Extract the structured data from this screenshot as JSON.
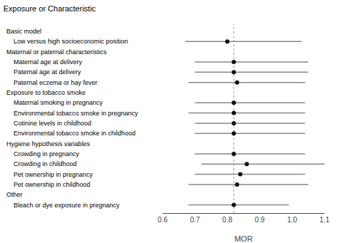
{
  "chart_data": {
    "type": "forest",
    "title": "Exposure or Characteristic",
    "x_label": "MOR",
    "categories": [
      "Basic model",
      "Low versus high socioeconomic position",
      "Maternal or paternal characteristics",
      "Maternal age at delivery",
      "Paternal age at delivery",
      "Paternal eczema or hay fever",
      "Exposure to tobacco smoke",
      "Maternal smoking in pregnancy",
      "Environmental tobacco smoke in pregnancy",
      "Cotinine levels in childhood",
      "Environmental tobacco smoke in childhood",
      "Hygiene hypothesis variables",
      "Crowding in pregnancy",
      "Crowding in childhood",
      "Pet ownership in pregnancy",
      "Pet ownership in childhood",
      "Other",
      "Bleach or dye exposure in pregnancy"
    ],
    "values": [
      null,
      0.8,
      null,
      0.82,
      0.82,
      0.83,
      null,
      0.82,
      0.82,
      0.82,
      0.82,
      null,
      0.82,
      0.86,
      0.84,
      0.83,
      null,
      0.82
    ],
    "ci_low": [
      null,
      0.67,
      null,
      0.7,
      0.7,
      0.68,
      null,
      0.7,
      0.68,
      0.7,
      0.7,
      null,
      0.7,
      0.72,
      0.7,
      0.68,
      null,
      0.68
    ],
    "ci_high": [
      null,
      1.03,
      null,
      1.05,
      1.05,
      1.04,
      null,
      1.04,
      1.04,
      1.04,
      1.04,
      null,
      1.04,
      1.1,
      1.04,
      1.05,
      null,
      0.99
    ],
    "reference_line": 0.82,
    "xlim": [
      0.6,
      1.1
    ],
    "xticks": [
      0.6,
      0.7,
      0.8,
      0.9,
      {
        "value": 1.0,
        "label": "1.0"
      },
      1.1
    ],
    "color": "#111111",
    "grid": false
  }
}
